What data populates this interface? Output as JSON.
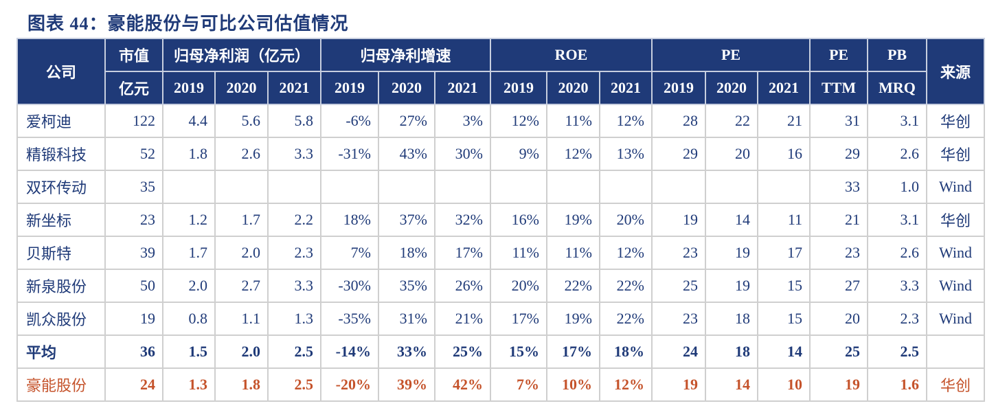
{
  "title": "图表 44：豪能股份与可比公司估值情况",
  "header": {
    "top": [
      "公司",
      "市值",
      "归母净利润（亿元）",
      "归母净利增速",
      "ROE",
      "PE",
      "PE",
      "PB",
      "来源"
    ],
    "sub": [
      "亿元",
      "2019",
      "2020",
      "2021",
      "2019",
      "2020",
      "2021",
      "2019",
      "2020",
      "2021",
      "2019",
      "2020",
      "2021",
      "TTM",
      "MRQ"
    ]
  },
  "table": {
    "rows": [
      [
        "爱柯迪",
        "122",
        "4.4",
        "5.6",
        "5.8",
        "-6%",
        "27%",
        "3%",
        "12%",
        "11%",
        "12%",
        "28",
        "22",
        "21",
        "31",
        "3.1",
        "华创"
      ],
      [
        "精锻科技",
        "52",
        "1.8",
        "2.6",
        "3.3",
        "-31%",
        "43%",
        "30%",
        "9%",
        "12%",
        "13%",
        "29",
        "20",
        "16",
        "29",
        "2.6",
        "华创"
      ],
      [
        "双环传动",
        "35",
        null,
        null,
        null,
        null,
        null,
        null,
        null,
        null,
        null,
        null,
        null,
        null,
        "33",
        "1.0",
        "Wind"
      ],
      [
        "新坐标",
        "23",
        "1.2",
        "1.7",
        "2.2",
        "18%",
        "37%",
        "32%",
        "16%",
        "19%",
        "20%",
        "19",
        "14",
        "11",
        "21",
        "3.1",
        "华创"
      ],
      [
        "贝斯特",
        "39",
        "1.7",
        "2.0",
        "2.3",
        "7%",
        "18%",
        "17%",
        "11%",
        "11%",
        "12%",
        "23",
        "19",
        "17",
        "23",
        "2.6",
        "Wind"
      ],
      [
        "新泉股份",
        "50",
        "2.0",
        "2.7",
        "3.3",
        "-30%",
        "35%",
        "26%",
        "20%",
        "22%",
        "22%",
        "25",
        "19",
        "15",
        "27",
        "3.3",
        "Wind"
      ],
      [
        "凯众股份",
        "19",
        "0.8",
        "1.1",
        "1.3",
        "-35%",
        "31%",
        "21%",
        "17%",
        "19%",
        "22%",
        "23",
        "18",
        "15",
        "20",
        "2.3",
        "Wind"
      ],
      [
        "平均",
        "36",
        "1.5",
        "2.0",
        "2.5",
        "-14%",
        "33%",
        "25%",
        "15%",
        "17%",
        "18%",
        "24",
        "18",
        "14",
        "25",
        "2.5",
        null
      ],
      [
        "豪能股份",
        "24",
        "1.3",
        "1.8",
        "2.5",
        "-20%",
        "39%",
        "42%",
        "7%",
        "10%",
        "12%",
        "19",
        "14",
        "10",
        "19",
        "1.6",
        "华创"
      ]
    ]
  }
}
